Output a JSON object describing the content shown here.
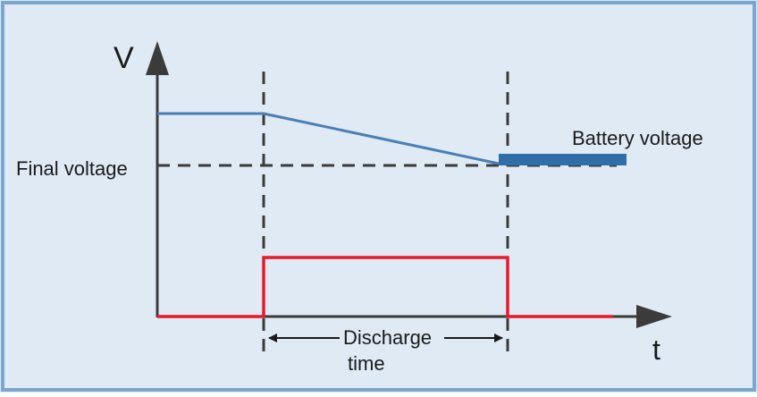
{
  "labels": {
    "y_axis": "V",
    "x_axis": "t",
    "final_voltage": "Final voltage",
    "battery_voltage": "Battery voltage",
    "discharge_line1": "Discharge",
    "discharge_line2": "time"
  },
  "colors": {
    "background": "#dfeaf4",
    "frame": "#7aa6cf",
    "axis": "#3b3b3b",
    "voltage_line": "#4a7fb5",
    "battery_bar": "#2f6ea8",
    "current_pulse": "#e8192b",
    "dashed": "#3b3b3b",
    "text": "#1a1a1a"
  }
}
